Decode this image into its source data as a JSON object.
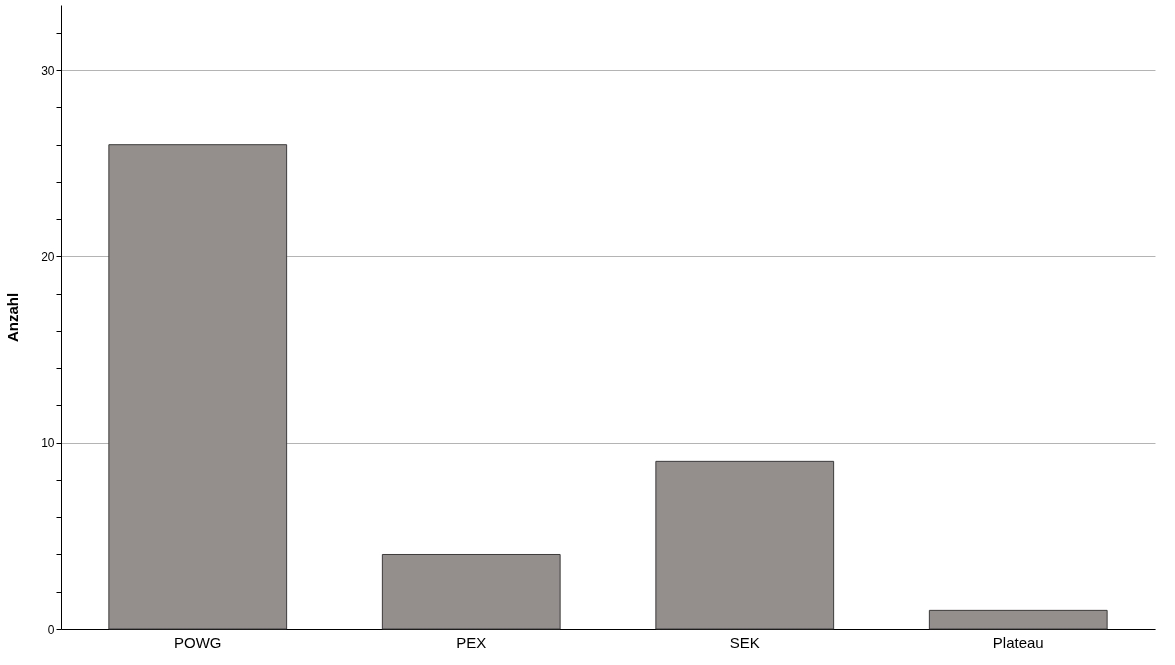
{
  "chart_data": {
    "type": "bar",
    "ylabel": "Anzahl",
    "categories": [
      "POWG",
      "PEX",
      "SEK",
      "Plateau"
    ],
    "values": [
      26,
      4,
      9,
      1
    ],
    "color": "#948f8d",
    "ylim": [
      0,
      33.5
    ],
    "yticks": [
      0,
      {
        "value": 2,
        "label": null
      },
      {
        "value": 4,
        "label": null
      },
      {
        "value": 6,
        "label": null
      },
      {
        "value": 8,
        "label": null
      },
      10,
      {
        "value": 12,
        "label": null
      },
      {
        "value": 14,
        "label": null
      },
      {
        "value": 16,
        "label": null
      },
      {
        "value": 18,
        "label": null
      },
      20,
      {
        "value": 22,
        "label": null
      },
      {
        "value": 24,
        "label": null
      },
      {
        "value": 26,
        "label": null
      },
      {
        "value": 28,
        "label": null
      },
      30,
      {
        "value": 32,
        "label": null
      }
    ],
    "grid": "y"
  }
}
